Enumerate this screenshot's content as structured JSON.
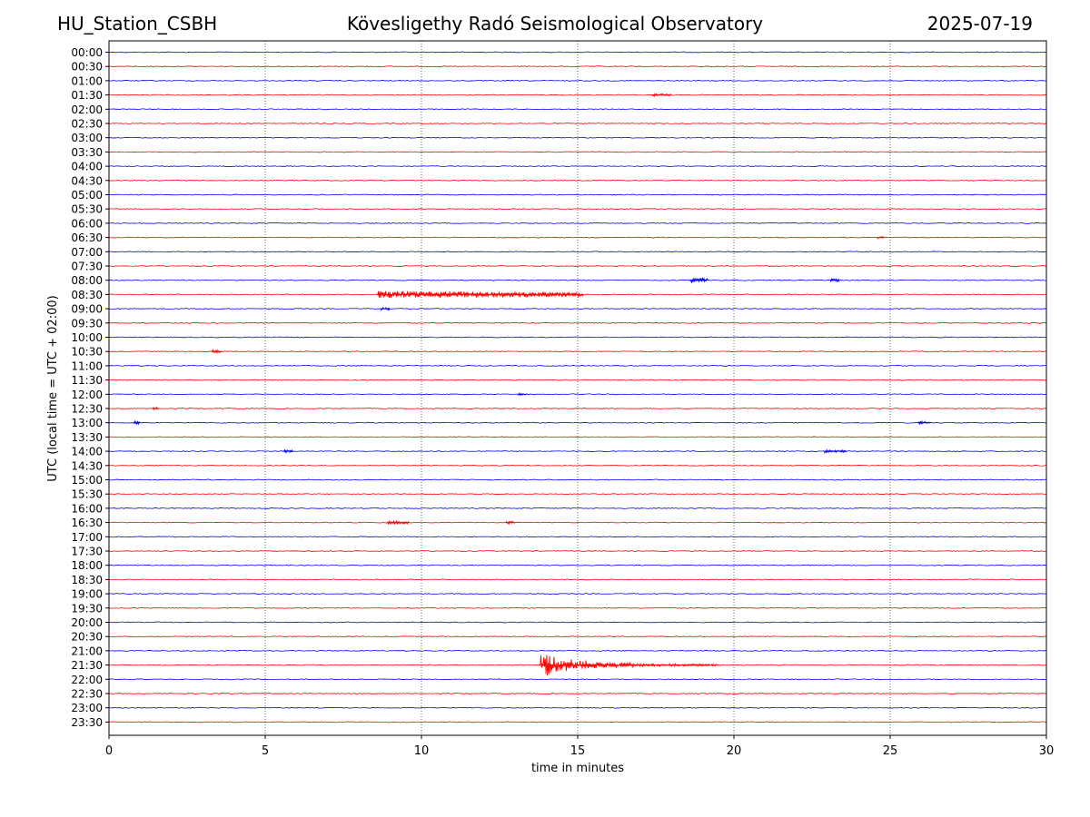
{
  "header": {
    "station": "HU_Station_CSBH",
    "title": "Kövesligethy Radó Seismological Observatory",
    "date": "2025-07-19"
  },
  "chart_data": {
    "type": "line",
    "subtype": "helicorder",
    "xlabel": "time in minutes",
    "ylabel": "UTC (local time = UTC + 02:00)",
    "xlim": [
      0,
      30
    ],
    "x_ticks": [
      0,
      5,
      10,
      15,
      20,
      25,
      30
    ],
    "vertical_grid": "dotted",
    "line_colors": [
      "#0000ff",
      "#ff0000"
    ],
    "rows": [
      "00:00",
      "00:30",
      "01:00",
      "01:30",
      "02:00",
      "02:30",
      "03:00",
      "03:30",
      "04:00",
      "04:30",
      "05:00",
      "05:30",
      "06:00",
      "06:30",
      "07:00",
      "07:30",
      "08:00",
      "08:30",
      "09:00",
      "09:30",
      "10:00",
      "10:30",
      "11:00",
      "11:30",
      "12:00",
      "12:30",
      "13:00",
      "13:30",
      "14:00",
      "14:30",
      "15:00",
      "15:30",
      "16:00",
      "16:30",
      "17:00",
      "17:30",
      "18:00",
      "18:30",
      "19:00",
      "19:30",
      "20:00",
      "20:30",
      "21:00",
      "21:30",
      "22:00",
      "22:30",
      "23:00",
      "23:30"
    ],
    "events": [
      {
        "row": "01:30",
        "start": 17.4,
        "end": 18.0,
        "amplitude": 0.12
      },
      {
        "row": "06:30",
        "start": 24.6,
        "end": 24.8,
        "amplitude": 0.12
      },
      {
        "row": "08:00",
        "start": 18.6,
        "end": 19.2,
        "amplitude": 0.2
      },
      {
        "row": "08:00",
        "start": 23.1,
        "end": 23.4,
        "amplitude": 0.12
      },
      {
        "row": "08:30",
        "start": 8.6,
        "end": 15.2,
        "amplitude": 0.25
      },
      {
        "row": "09:00",
        "start": 8.7,
        "end": 9.0,
        "amplitude": 0.15
      },
      {
        "row": "10:30",
        "start": 3.3,
        "end": 3.6,
        "amplitude": 0.15
      },
      {
        "row": "12:00",
        "start": 13.1,
        "end": 13.4,
        "amplitude": 0.1
      },
      {
        "row": "12:30",
        "start": 1.4,
        "end": 1.6,
        "amplitude": 0.12
      },
      {
        "row": "13:00",
        "start": 0.8,
        "end": 1.0,
        "amplitude": 0.12
      },
      {
        "row": "13:00",
        "start": 25.9,
        "end": 26.3,
        "amplitude": 0.12
      },
      {
        "row": "14:00",
        "start": 5.6,
        "end": 5.9,
        "amplitude": 0.12
      },
      {
        "row": "14:00",
        "start": 22.9,
        "end": 23.6,
        "amplitude": 0.1
      },
      {
        "row": "16:30",
        "start": 8.9,
        "end": 9.6,
        "amplitude": 0.12
      },
      {
        "row": "16:30",
        "start": 12.7,
        "end": 13.0,
        "amplitude": 0.12
      },
      {
        "row": "21:30",
        "start": 13.8,
        "end": 14.4,
        "amplitude": 0.85
      },
      {
        "row": "21:30",
        "start": 14.4,
        "end": 15.4,
        "amplitude": 0.45
      },
      {
        "row": "21:30",
        "start": 15.4,
        "end": 16.8,
        "amplitude": 0.22
      },
      {
        "row": "21:30",
        "start": 16.8,
        "end": 19.5,
        "amplitude": 0.1
      }
    ]
  }
}
